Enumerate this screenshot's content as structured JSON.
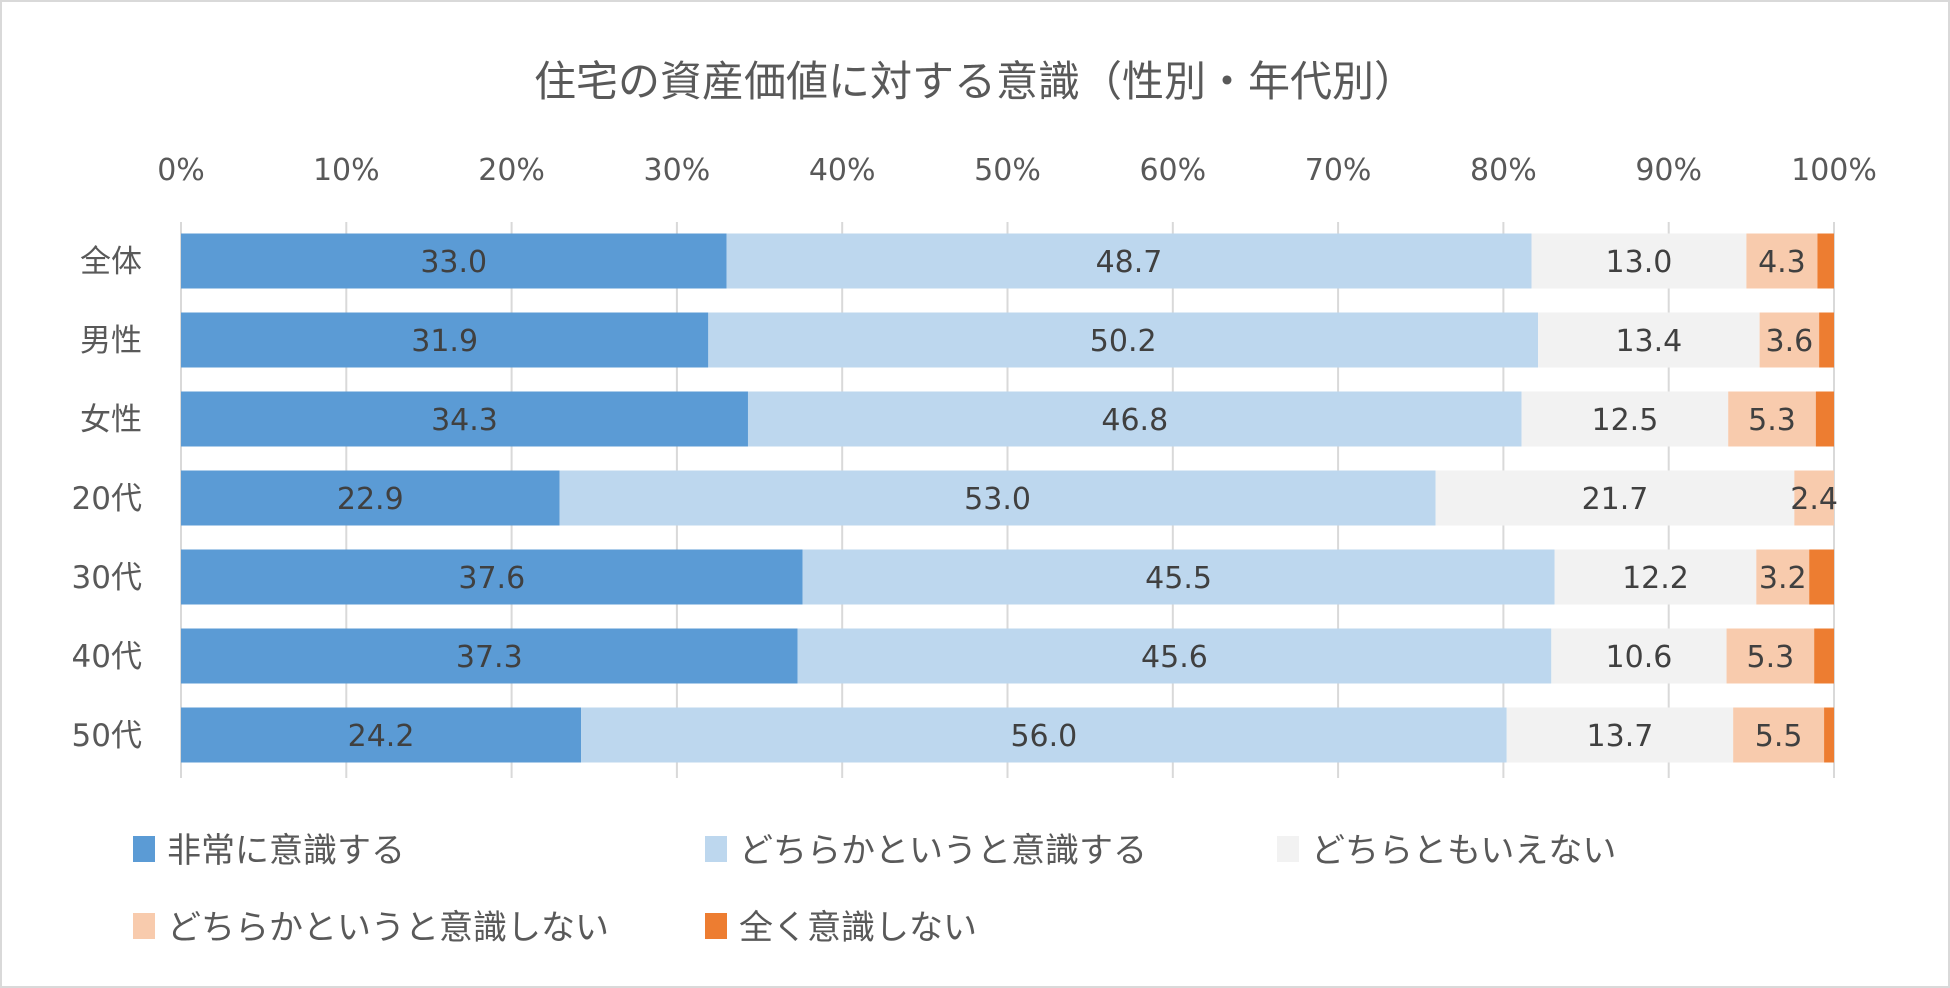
{
  "chart_data": {
    "type": "bar",
    "orientation": "horizontal",
    "stacked": "percent",
    "title": "住宅の資産価値に対する意識（性別・年代別）",
    "xlabel": "",
    "ylabel": "",
    "xlim": [
      0,
      100
    ],
    "x_ticks": [
      "0%",
      "10%",
      "20%",
      "30%",
      "40%",
      "50%",
      "60%",
      "70%",
      "80%",
      "90%",
      "100%"
    ],
    "grid": "vertical",
    "legend_position": "bottom",
    "categories": [
      "全体",
      "男性",
      "女性",
      "20代",
      "30代",
      "40代",
      "50代"
    ],
    "series": [
      {
        "name": "非常に意識する",
        "color": "#5b9bd5",
        "values": [
          33.0,
          31.9,
          34.3,
          22.9,
          37.6,
          37.3,
          24.2
        ],
        "labels": [
          "33.0",
          "31.9",
          "34.3",
          "22.9",
          "37.6",
          "37.3",
          "24.2"
        ]
      },
      {
        "name": "どちらかというと意識する",
        "color": "#bdd7ee",
        "values": [
          48.7,
          50.2,
          46.8,
          53.0,
          45.5,
          45.6,
          56.0
        ],
        "labels": [
          "48.7",
          "50.2",
          "46.8",
          "53.0",
          "45.5",
          "45.6",
          "56.0"
        ]
      },
      {
        "name": "どちらともいえない",
        "color": "#f2f2f2",
        "values": [
          13.0,
          13.4,
          12.5,
          21.7,
          12.2,
          10.6,
          13.7
        ],
        "labels": [
          "13.0",
          "13.4",
          "12.5",
          "21.7",
          "12.2",
          "10.6",
          "13.7"
        ]
      },
      {
        "name": "どちらかというと意識しない",
        "color": "#f8cbad",
        "values": [
          4.3,
          3.6,
          5.3,
          2.4,
          3.2,
          5.3,
          5.5
        ],
        "labels": [
          "4.3",
          "3.6",
          "5.3",
          "2.4",
          "3.2",
          "5.3",
          "5.5"
        ]
      },
      {
        "name": "全く意識しない",
        "color": "#ed7d31",
        "values": [
          1.0,
          0.9,
          1.1,
          0.0,
          1.5,
          1.2,
          0.6
        ],
        "labels": null
      }
    ]
  }
}
